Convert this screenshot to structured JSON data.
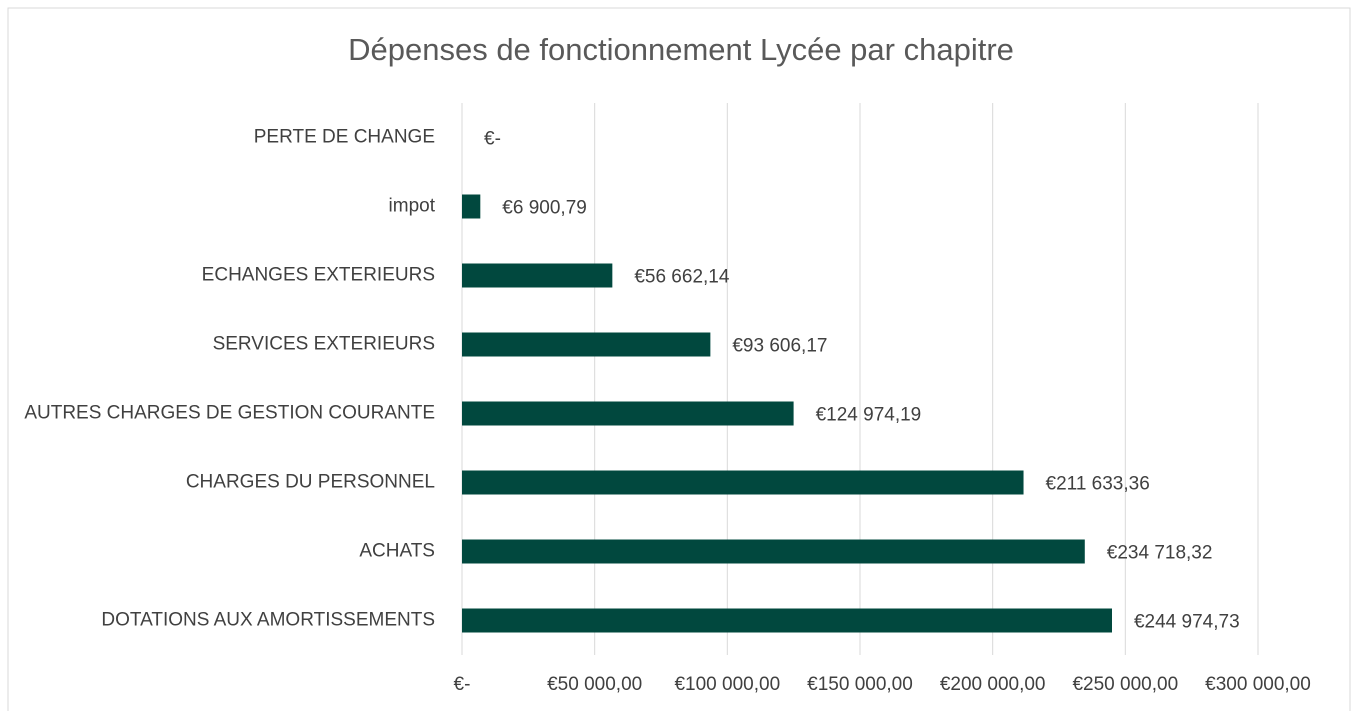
{
  "chart_data": {
    "type": "bar",
    "orientation": "horizontal",
    "title": "Dépenses de fonctionnement Lycée par chapitre",
    "categories": [
      "PERTE DE CHANGE",
      "impot",
      "ECHANGES EXTERIEURS",
      "SERVICES EXTERIEURS",
      "AUTRES CHARGES DE GESTION COURANTE",
      "CHARGES DU PERSONNEL",
      "ACHATS",
      "DOTATIONS AUX AMORTISSEMENTS"
    ],
    "values": [
      0,
      6900.79,
      56662.14,
      93606.17,
      124974.19,
      211633.36,
      234718.32,
      244974.73
    ],
    "value_labels": [
      "€-",
      "€6 900,79",
      "€56 662,14",
      "€93 606,17",
      "€124 974,19",
      "€211 633,36",
      "€234 718,32",
      "€244 974,73"
    ],
    "color": "#01483e",
    "xlim": [
      0,
      300000
    ],
    "xticks": [
      {
        "value": 0,
        "label": "€-"
      },
      {
        "value": 50000,
        "label": "€50 000,00"
      },
      {
        "value": 100000,
        "label": "€100 000,00"
      },
      {
        "value": 150000,
        "label": "€150 000,00"
      },
      {
        "value": 200000,
        "label": "€200 000,00"
      },
      {
        "value": 250000,
        "label": "€250 000,00"
      },
      {
        "value": 300000,
        "label": "€300 000,00"
      }
    ],
    "grid": true
  }
}
